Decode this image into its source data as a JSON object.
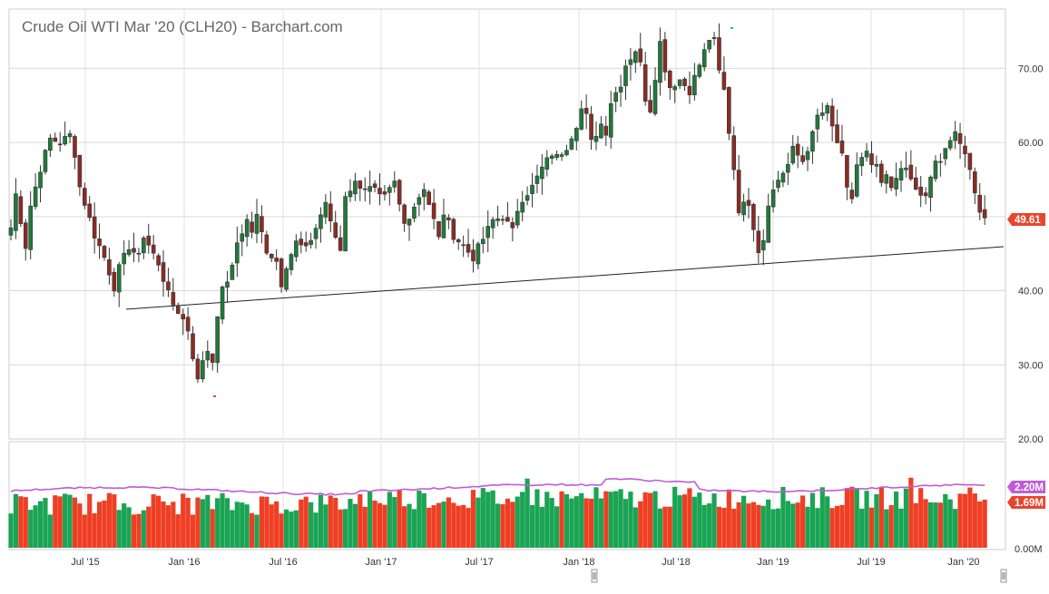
{
  "title": "Crude Oil WTI Mar '20 (CLH20) - Barchart.com",
  "chart_data": {
    "type": "candlestick",
    "title": "Crude Oil WTI Mar '20 (CLH20) - Barchart.com",
    "price_axis": {
      "min": 20,
      "max": 78,
      "ticks": [
        "20.00",
        "30.00",
        "40.00",
        "50.00",
        "60.00",
        "70.00"
      ]
    },
    "volume_axis": {
      "ticks": [
        "0.00M"
      ]
    },
    "x_labels": [
      "Jul '15",
      "Jan '16",
      "Jul '16",
      "Jan '17",
      "Jul '17",
      "Jan '18",
      "Jul '18",
      "Jan '19",
      "Jul '19",
      "Jan '20"
    ],
    "last_price": "49.61",
    "last_volume": "1.69M",
    "volume_avg_label": "2.20M",
    "grid": true,
    "colors": {
      "up_candle": "#1f7a3a",
      "down_candle": "#8b2c23",
      "up_volume": "#1aa454",
      "down_volume": "#ee3f24",
      "volume_average": "#c05cd6",
      "price_badge": "#e8452e",
      "trendline": "#222222"
    },
    "weekly_close": [
      [
        0,
        48.5
      ],
      [
        1,
        53.0
      ],
      [
        2,
        49.5
      ],
      [
        3,
        46.0
      ],
      [
        4,
        51.5
      ],
      [
        6,
        56.5
      ],
      [
        8,
        60.5
      ],
      [
        10,
        60.0
      ],
      [
        12,
        61.0
      ],
      [
        13,
        58.5
      ],
      [
        14,
        54.0
      ],
      [
        17,
        47.5
      ],
      [
        19,
        44.5
      ],
      [
        21,
        40.5
      ],
      [
        22,
        43.0
      ],
      [
        24,
        46.0
      ],
      [
        26,
        44.5
      ],
      [
        27,
        47.5
      ],
      [
        29,
        45.0
      ],
      [
        31,
        41.5
      ],
      [
        32,
        40.5
      ],
      [
        33,
        37.5
      ],
      [
        35,
        36.5
      ],
      [
        36,
        34.5
      ],
      [
        37,
        31.0
      ],
      [
        38,
        28.5
      ],
      [
        40,
        32.0
      ],
      [
        41,
        30.5
      ],
      [
        42,
        37.0
      ],
      [
        43,
        40.0
      ],
      [
        45,
        43.0
      ],
      [
        46,
        46.5
      ],
      [
        48,
        49.5
      ],
      [
        49,
        48.0
      ],
      [
        50,
        50.0
      ],
      [
        52,
        45.5
      ],
      [
        54,
        44.0
      ],
      [
        55,
        41.0
      ],
      [
        56,
        43.5
      ],
      [
        58,
        46.5
      ],
      [
        60,
        45.5
      ],
      [
        62,
        48.5
      ],
      [
        64,
        52.0
      ],
      [
        65,
        49.0
      ],
      [
        67,
        45.5
      ],
      [
        68,
        53.0
      ],
      [
        70,
        54.5
      ],
      [
        72,
        54.0
      ],
      [
        74,
        53.5
      ],
      [
        75,
        52.5
      ],
      [
        76,
        52.5
      ],
      [
        78,
        54.5
      ],
      [
        79,
        51.5
      ],
      [
        80,
        49.0
      ],
      [
        82,
        51.5
      ],
      [
        84,
        54.0
      ],
      [
        86,
        49.5
      ],
      [
        87,
        47.0
      ],
      [
        88,
        50.5
      ],
      [
        90,
        47.5
      ],
      [
        92,
        46.0
      ],
      [
        94,
        44.5
      ],
      [
        96,
        47.0
      ],
      [
        98,
        49.5
      ],
      [
        100,
        50.0
      ],
      [
        102,
        48.0
      ],
      [
        103,
        51.0
      ],
      [
        104,
        52.5
      ],
      [
        106,
        54.0
      ],
      [
        108,
        56.5
      ],
      [
        110,
        58.5
      ],
      [
        111,
        58.0
      ],
      [
        113,
        59.5
      ],
      [
        115,
        62.5
      ],
      [
        116,
        64.5
      ],
      [
        117,
        63.5
      ],
      [
        118,
        60.0
      ],
      [
        120,
        62.5
      ],
      [
        121,
        61.5
      ],
      [
        122,
        65.5
      ],
      [
        124,
        68.0
      ],
      [
        125,
        70.5
      ],
      [
        127,
        72.5
      ],
      [
        128,
        70.5
      ],
      [
        129,
        66.0
      ],
      [
        130,
        64.5
      ],
      [
        132,
        73.5
      ],
      [
        133,
        70.0
      ],
      [
        134,
        67.5
      ],
      [
        136,
        68.5
      ],
      [
        138,
        67.0
      ],
      [
        140,
        70.5
      ],
      [
        142,
        74.0
      ],
      [
        143,
        73.5
      ],
      [
        144,
        69.5
      ],
      [
        145,
        67.0
      ],
      [
        146,
        61.5
      ],
      [
        147,
        56.5
      ],
      [
        148,
        51.0
      ],
      [
        150,
        52.0
      ],
      [
        152,
        45.5
      ],
      [
        153,
        47.0
      ],
      [
        154,
        52.0
      ],
      [
        156,
        55.0
      ],
      [
        158,
        57.0
      ],
      [
        159,
        59.0
      ],
      [
        161,
        57.5
      ],
      [
        163,
        61.0
      ],
      [
        164,
        63.5
      ],
      [
        166,
        64.5
      ],
      [
        167,
        62.0
      ],
      [
        169,
        58.0
      ],
      [
        170,
        53.5
      ],
      [
        171,
        52.5
      ],
      [
        172,
        57.0
      ],
      [
        174,
        58.5
      ],
      [
        175,
        56.5
      ],
      [
        176,
        57.0
      ],
      [
        177,
        54.0
      ],
      [
        178,
        55.5
      ],
      [
        179,
        53.5
      ],
      [
        181,
        57.0
      ],
      [
        183,
        55.0
      ],
      [
        184,
        53.5
      ],
      [
        186,
        52.5
      ],
      [
        187,
        55.0
      ],
      [
        188,
        57.5
      ],
      [
        189,
        57.5
      ],
      [
        191,
        60.0
      ],
      [
        192,
        62.0
      ],
      [
        193,
        60.0
      ],
      [
        194,
        58.5
      ],
      [
        196,
        53.0
      ],
      [
        197,
        51.0
      ],
      [
        198,
        49.61
      ]
    ]
  }
}
